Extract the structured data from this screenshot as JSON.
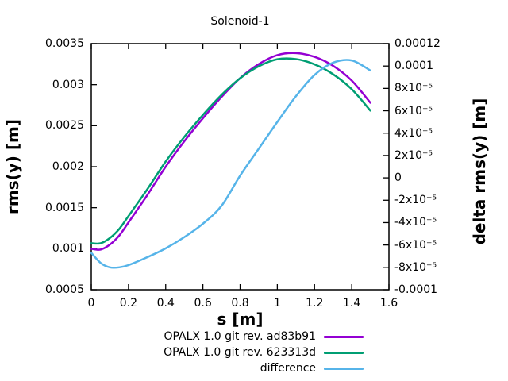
{
  "title": "Solenoid-1",
  "colors": {
    "series_purple": "#9400d3",
    "series_green": "#009e73",
    "series_blue": "#56b4e9",
    "axis": "#000000",
    "background": "#ffffff"
  },
  "axes": {
    "x": {
      "label": "s [m]",
      "min": 0,
      "max": 1.6,
      "tick_values": [
        0,
        0.2,
        0.4,
        0.6,
        0.8,
        1,
        1.2,
        1.4,
        1.6
      ],
      "tick_labels": [
        "0",
        "0.2",
        "0.4",
        "0.6",
        "0.8",
        "1",
        "1.2",
        "1.4",
        "1.6"
      ]
    },
    "y_left": {
      "label": "rms(y) [m]",
      "min": 0.0005,
      "max": 0.0035,
      "tick_values": [
        0.0005,
        0.001,
        0.0015,
        0.002,
        0.0025,
        0.003,
        0.0035
      ],
      "tick_labels": [
        "0.0005",
        "0.001",
        "0.0015",
        "0.002",
        "0.0025",
        "0.003",
        "0.0035"
      ]
    },
    "y_right": {
      "label": "delta rms(y) [m]",
      "min": -0.0001,
      "max": 0.00012,
      "tick_values": [
        -0.0001,
        -8e-05,
        -6e-05,
        -4e-05,
        -2e-05,
        0,
        2e-05,
        4e-05,
        6e-05,
        8e-05,
        0.0001,
        0.00012
      ],
      "tick_labels": [
        "-0.0001",
        "-8x10⁻⁵",
        "-6x10⁻⁵",
        "-4x10⁻⁵",
        "-2x10⁻⁵",
        "0",
        "2x10⁻⁵",
        "4x10⁻⁵",
        "6x10⁻⁵",
        "8x10⁻⁵",
        "0.0001",
        "0.00012"
      ]
    }
  },
  "legend": {
    "items": [
      {
        "label": "OPALX 1.0 git rev. ad83b91",
        "color": "#9400d3"
      },
      {
        "label": "OPALX 1.0 git rev. 623313d",
        "color": "#009e73"
      },
      {
        "label": "difference",
        "color": "#56b4e9"
      }
    ]
  },
  "chart_data": {
    "type": "line",
    "title": "Solenoid-1",
    "xlabel": "s [m]",
    "ylabel_left": "rms(y) [m]",
    "ylabel_right": "delta rms(y) [m]",
    "xlim": [
      0,
      1.6
    ],
    "ylim_left": [
      0.0005,
      0.0035
    ],
    "ylim_right": [
      -0.0001,
      0.00012
    ],
    "grid": false,
    "legend_position": "bottom-center",
    "x": [
      0,
      0.05,
      0.1,
      0.15,
      0.2,
      0.3,
      0.4,
      0.5,
      0.6,
      0.7,
      0.8,
      0.9,
      1.0,
      1.1,
      1.2,
      1.3,
      1.4,
      1.5
    ],
    "series": [
      {
        "name": "OPALX 1.0 git rev. ad83b91",
        "axis": "left",
        "color": "#9400d3",
        "values": [
          0.001,
          0.00099,
          0.00105,
          0.00116,
          0.00132,
          0.00165,
          0.002,
          0.00231,
          0.00259,
          0.00285,
          0.00308,
          0.00325,
          0.00336,
          0.003385,
          0.00334,
          0.00323,
          0.00305,
          0.00278
        ]
      },
      {
        "name": "OPALX 1.0 git rev. 623313d",
        "axis": "left",
        "color": "#009e73",
        "values": [
          0.001067,
          0.001066,
          0.00113,
          0.00124,
          0.001398,
          0.001721,
          0.002063,
          0.002363,
          0.002631,
          0.002875,
          0.003078,
          0.003224,
          0.00331,
          0.003312,
          0.003248,
          0.003127,
          0.002945,
          0.002684
        ]
      },
      {
        "name": "difference",
        "axis": "right",
        "color": "#56b4e9",
        "values": [
          -6.7e-05,
          -7.6e-05,
          -8e-05,
          -8e-05,
          -7.8e-05,
          -7.1e-05,
          -6.3e-05,
          -5.3e-05,
          -4.1e-05,
          -2.5e-05,
          2e-06,
          2.6e-05,
          5e-05,
          7.3e-05,
          9.2e-05,
          0.000103,
          0.000105,
          9.6e-05
        ]
      }
    ]
  }
}
